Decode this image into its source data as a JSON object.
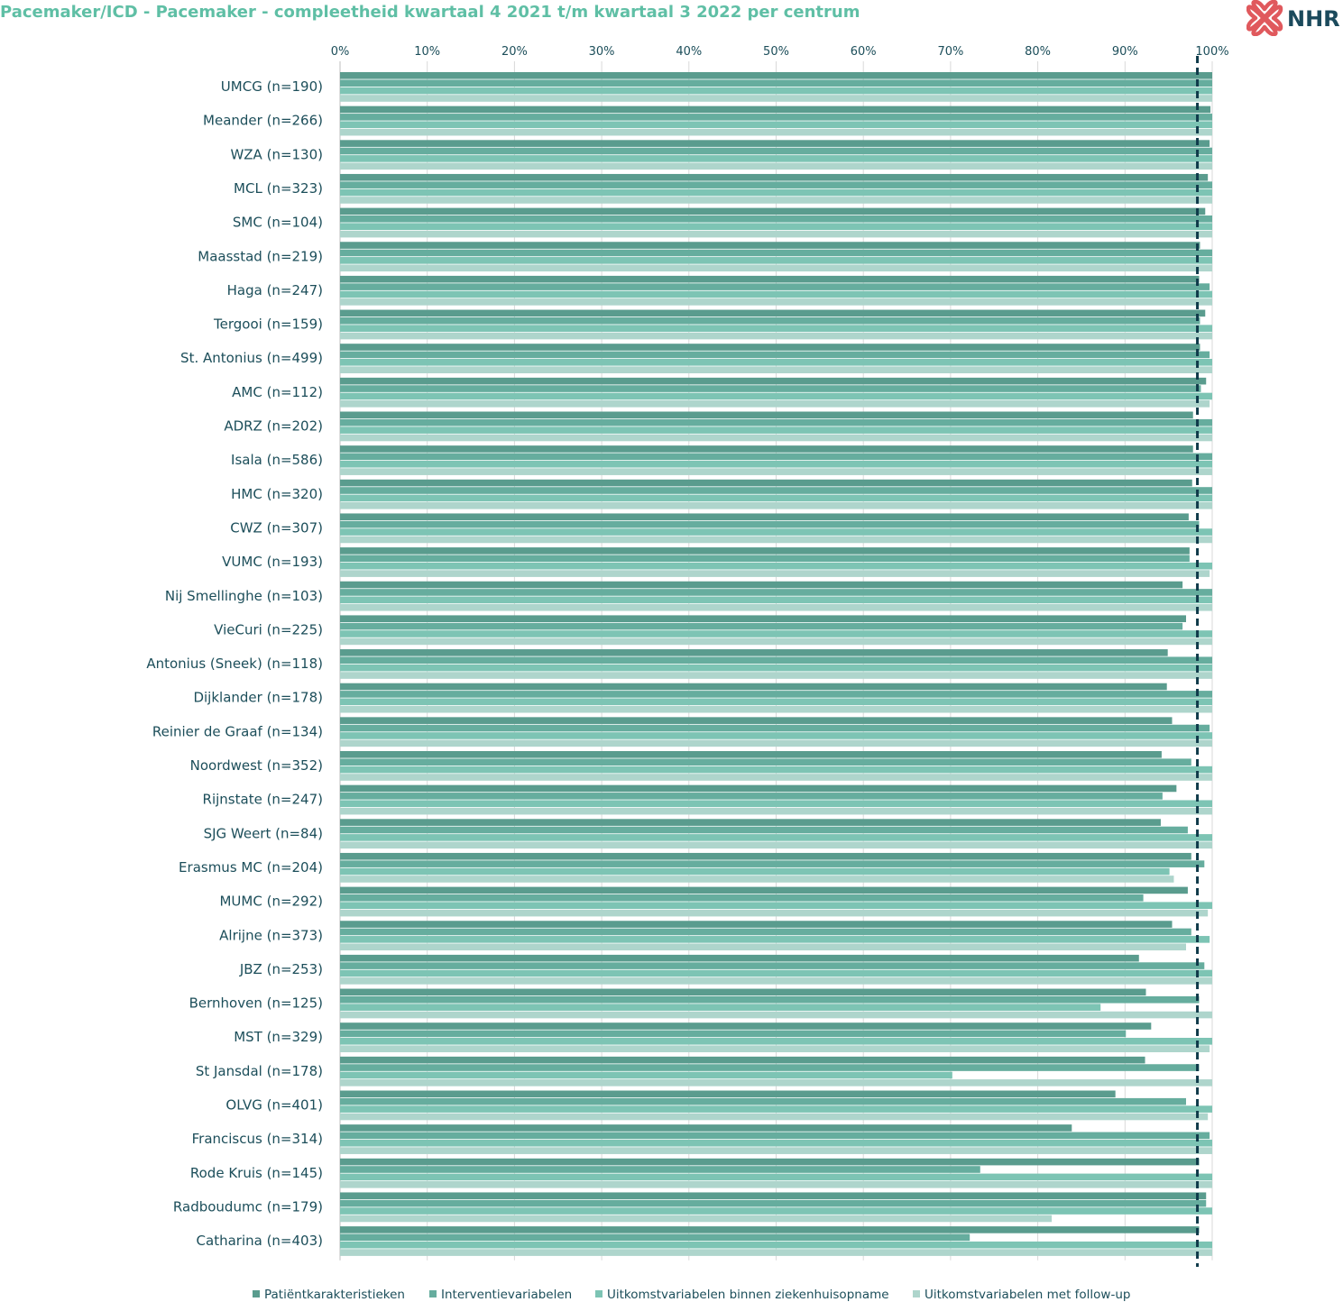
{
  "header": {
    "title": "Pacemaker/ICD - Pacemaker - compleetheid kwartaal 4 2021 t/m kwartaal 3 2022 per centrum",
    "logo_text": "NHR"
  },
  "colors": {
    "title": "#5fbfa5",
    "axis_text": "#1c4e5a",
    "grid": "#d9d9d9",
    "target_line": "#0f3a4a",
    "series": [
      "#5a9c8e",
      "#66ad9e",
      "#7dc4b4",
      "#aed5cc"
    ]
  },
  "chart_data": {
    "type": "bar",
    "orientation": "horizontal",
    "title": "Pacemaker/ICD - Pacemaker - compleetheid kwartaal 4 2021 t/m kwartaal 3 2022 per centrum",
    "xlim": [
      0,
      100
    ],
    "x_ticks": [
      "0%",
      "10%",
      "20%",
      "30%",
      "40%",
      "50%",
      "60%",
      "70%",
      "80%",
      "90%",
      "100%"
    ],
    "reference_line": 98.3,
    "legend_position": "bottom",
    "grid": true,
    "categories": [
      "UMCG (n=190)",
      "Meander (n=266)",
      "WZA (n=130)",
      "MCL (n=323)",
      "SMC (n=104)",
      "Maasstad (n=219)",
      "Haga (n=247)",
      "Tergooi (n=159)",
      "St. Antonius (n=499)",
      "AMC (n=112)",
      "ADRZ (n=202)",
      "Isala (n=586)",
      "HMC (n=320)",
      "CWZ (n=307)",
      "VUMC (n=193)",
      "Nij Smellinghe (n=103)",
      "VieCuri (n=225)",
      "Antonius (Sneek) (n=118)",
      "Dijklander (n=178)",
      "Reinier de Graaf (n=134)",
      "Noordwest (n=352)",
      "Rijnstate (n=247)",
      "SJG Weert (n=84)",
      "Erasmus MC (n=204)",
      "MUMC (n=292)",
      "Alrijne (n=373)",
      "JBZ (n=253)",
      "Bernhoven (n=125)",
      "MST (n=329)",
      "St Jansdal (n=178)",
      "OLVG (n=401)",
      "Franciscus (n=314)",
      "Rode Kruis (n=145)",
      "Radboudumc (n=179)",
      "Catharina (n=403)"
    ],
    "series": [
      {
        "name": "Patiëntkarakteristieken",
        "values": [
          100,
          99.8,
          99.7,
          99.5,
          99.2,
          98.6,
          98.5,
          99.2,
          98.6,
          99.3,
          97.8,
          97.8,
          97.7,
          97.3,
          97.4,
          96.6,
          97.0,
          94.9,
          94.8,
          95.4,
          94.2,
          95.9,
          94.1,
          97.6,
          97.2,
          95.4,
          91.6,
          92.4,
          93.0,
          92.3,
          88.9,
          83.9,
          98.5,
          99.3,
          98.5
        ]
      },
      {
        "name": "Interventievariabelen",
        "values": [
          100,
          100,
          100,
          100,
          100,
          100,
          99.7,
          98.6,
          99.7,
          98.7,
          100,
          100,
          100,
          98.5,
          97.4,
          100,
          96.6,
          100,
          100,
          99.7,
          97.6,
          94.3,
          97.2,
          99.1,
          92.1,
          97.6,
          99.1,
          98.5,
          90.1,
          98.5,
          97.0,
          99.7,
          73.4,
          99.3,
          72.2
        ]
      },
      {
        "name": "Uitkomstvariabelen binnen ziekenhuisopname",
        "values": [
          100,
          100,
          100,
          100,
          100,
          100,
          100,
          100,
          100,
          100,
          100,
          100,
          100,
          100,
          100,
          100,
          100,
          100,
          100,
          100,
          100,
          100,
          100,
          95.1,
          100,
          99.7,
          100,
          87.2,
          100,
          70.2,
          100,
          100,
          100,
          100,
          100
        ]
      },
      {
        "name": "Uitkomstvariabelen met follow-up",
        "values": [
          100,
          100,
          100,
          100,
          100,
          100,
          100,
          100,
          100,
          99.7,
          100,
          100,
          100,
          100,
          99.7,
          100,
          100,
          100,
          100,
          100,
          100,
          100,
          100,
          95.6,
          99.5,
          97.0,
          100,
          100,
          99.7,
          100,
          99.5,
          100,
          100,
          81.6,
          100
        ]
      }
    ]
  }
}
